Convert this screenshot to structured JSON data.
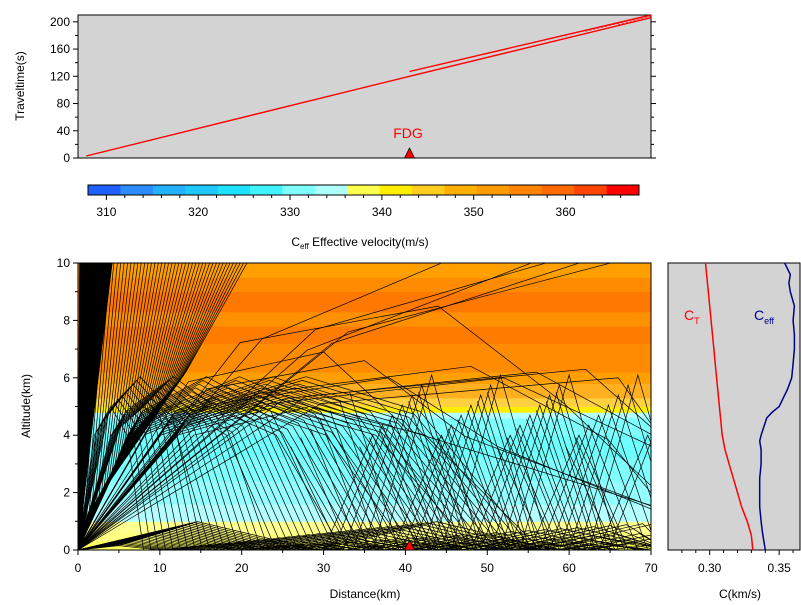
{
  "chart_data": [
    {
      "type": "line",
      "panel": "traveltime",
      "ylabel": "Traveltime(s)",
      "xlim": [
        0,
        70
      ],
      "ylim": [
        0,
        210
      ],
      "yticks": [
        0,
        40,
        80,
        120,
        160,
        200
      ],
      "background": "#d3d3d3",
      "series": [
        {
          "color": "#ff0000",
          "points": [
            [
              1,
              3
            ],
            [
              40.5,
              120
            ],
            [
              70,
              206
            ]
          ]
        },
        {
          "color": "#ff0000",
          "points": [
            [
              40.5,
              127
            ],
            [
              70,
              210
            ]
          ]
        }
      ],
      "station": {
        "label": "FDG",
        "x": 40.5,
        "color": "#ff0000"
      }
    },
    {
      "type": "heatmap",
      "panel": "colorbar",
      "label_main": "C",
      "label_sub": "eff",
      "label_rest": " Effective velocity(m/s)",
      "range": [
        308,
        368
      ],
      "ticks": [
        310,
        320,
        330,
        340,
        350,
        360
      ],
      "colors": [
        "#2060ff",
        "#2c8cff",
        "#22b0ff",
        "#1ec8ff",
        "#1ee0ff",
        "#40f4ff",
        "#80ffff",
        "#b0ffff",
        "#ffff50",
        "#ffee00",
        "#ffcc20",
        "#ffb000",
        "#ff9a00",
        "#ff8400",
        "#ff6a00",
        "#ff4400",
        "#ff0000"
      ]
    },
    {
      "type": "line",
      "panel": "ray-paths",
      "xlabel": "Distance(km)",
      "ylabel": "Altitude(km)",
      "xlim": [
        0,
        70
      ],
      "ylim": [
        0,
        10
      ],
      "xticks": [
        0,
        10,
        20,
        30,
        40,
        50,
        60,
        70
      ],
      "yticks": [
        0,
        2,
        4,
        6,
        8,
        10
      ],
      "layers": [
        {
          "z": [
            0,
            0.3
          ],
          "color": "#ffff60"
        },
        {
          "z": [
            0.3,
            0.6
          ],
          "color": "#ffff80"
        },
        {
          "z": [
            0.6,
            1.0
          ],
          "color": "#ffff90"
        },
        {
          "z": [
            1.0,
            1.6
          ],
          "color": "#b4ffff"
        },
        {
          "z": [
            1.6,
            2.4
          ],
          "color": "#94ffff"
        },
        {
          "z": [
            2.4,
            3.2
          ],
          "color": "#80ffff"
        },
        {
          "z": [
            3.2,
            4.0
          ],
          "color": "#6effff"
        },
        {
          "z": [
            4.0,
            4.6
          ],
          "color": "#80ffff"
        },
        {
          "z": [
            4.6,
            4.8
          ],
          "color": "#b4ffff"
        },
        {
          "z": [
            4.8,
            5.0
          ],
          "color": "#ffee00"
        },
        {
          "z": [
            5.0,
            5.3
          ],
          "color": "#ffd040"
        },
        {
          "z": [
            5.3,
            5.8
          ],
          "color": "#ffb020"
        },
        {
          "z": [
            5.8,
            6.2
          ],
          "color": "#ffa000"
        },
        {
          "z": [
            6.2,
            7.2
          ],
          "color": "#ff8c00"
        },
        {
          "z": [
            7.2,
            7.8
          ],
          "color": "#ff7c00"
        },
        {
          "z": [
            7.8,
            8.3
          ],
          "color": "#ff9000"
        },
        {
          "z": [
            8.3,
            9.0
          ],
          "color": "#ff7800"
        },
        {
          "z": [
            9.0,
            9.5
          ],
          "color": "#ff8c00"
        },
        {
          "z": [
            9.5,
            10
          ],
          "color": "#ffa000"
        }
      ],
      "station": {
        "x": 40.5,
        "color": "#ff0000"
      }
    },
    {
      "type": "line",
      "panel": "velocity-profile",
      "xlabel": "C(km/s)",
      "xlim": [
        0.27,
        0.365
      ],
      "xticks": [
        0.3,
        0.35
      ],
      "ylim": [
        0,
        10
      ],
      "background": "#d3d3d3",
      "series": [
        {
          "name_main": "C",
          "name_sub": "T",
          "color": "#ff0000",
          "points": [
            [
              0.331,
              0
            ],
            [
              0.33,
              0.5
            ],
            [
              0.327,
              1.0
            ],
            [
              0.323,
              1.5
            ],
            [
              0.32,
              2.0
            ],
            [
              0.317,
              2.5
            ],
            [
              0.314,
              3.0
            ],
            [
              0.311,
              3.5
            ],
            [
              0.309,
              4.0
            ],
            [
              0.308,
              4.5
            ],
            [
              0.307,
              5.0
            ],
            [
              0.306,
              5.5
            ],
            [
              0.305,
              6.0
            ],
            [
              0.304,
              6.5
            ],
            [
              0.303,
              7.0
            ],
            [
              0.302,
              7.5
            ],
            [
              0.301,
              8.0
            ],
            [
              0.3,
              8.5
            ],
            [
              0.299,
              9.0
            ],
            [
              0.298,
              9.5
            ],
            [
              0.297,
              10
            ]
          ]
        },
        {
          "name_main": "C",
          "name_sub": "eff",
          "color": "#00008b",
          "points": [
            [
              0.34,
              0
            ],
            [
              0.339,
              0.3
            ],
            [
              0.338,
              0.6
            ],
            [
              0.337,
              1.0
            ],
            [
              0.336,
              1.5
            ],
            [
              0.336,
              2.0
            ],
            [
              0.336,
              2.5
            ],
            [
              0.337,
              3.0
            ],
            [
              0.337,
              3.5
            ],
            [
              0.336,
              3.8
            ],
            [
              0.337,
              4.0
            ],
            [
              0.339,
              4.3
            ],
            [
              0.341,
              4.6
            ],
            [
              0.345,
              4.8
            ],
            [
              0.35,
              5.0
            ],
            [
              0.353,
              5.3
            ],
            [
              0.356,
              5.6
            ],
            [
              0.359,
              6.0
            ],
            [
              0.36,
              6.5
            ],
            [
              0.361,
              7.0
            ],
            [
              0.361,
              7.5
            ],
            [
              0.36,
              8.0
            ],
            [
              0.361,
              8.5
            ],
            [
              0.358,
              9.0
            ],
            [
              0.357,
              9.3
            ],
            [
              0.358,
              9.6
            ],
            [
              0.354,
              10
            ]
          ]
        }
      ]
    }
  ],
  "labels": {
    "station_name": "FDG"
  }
}
